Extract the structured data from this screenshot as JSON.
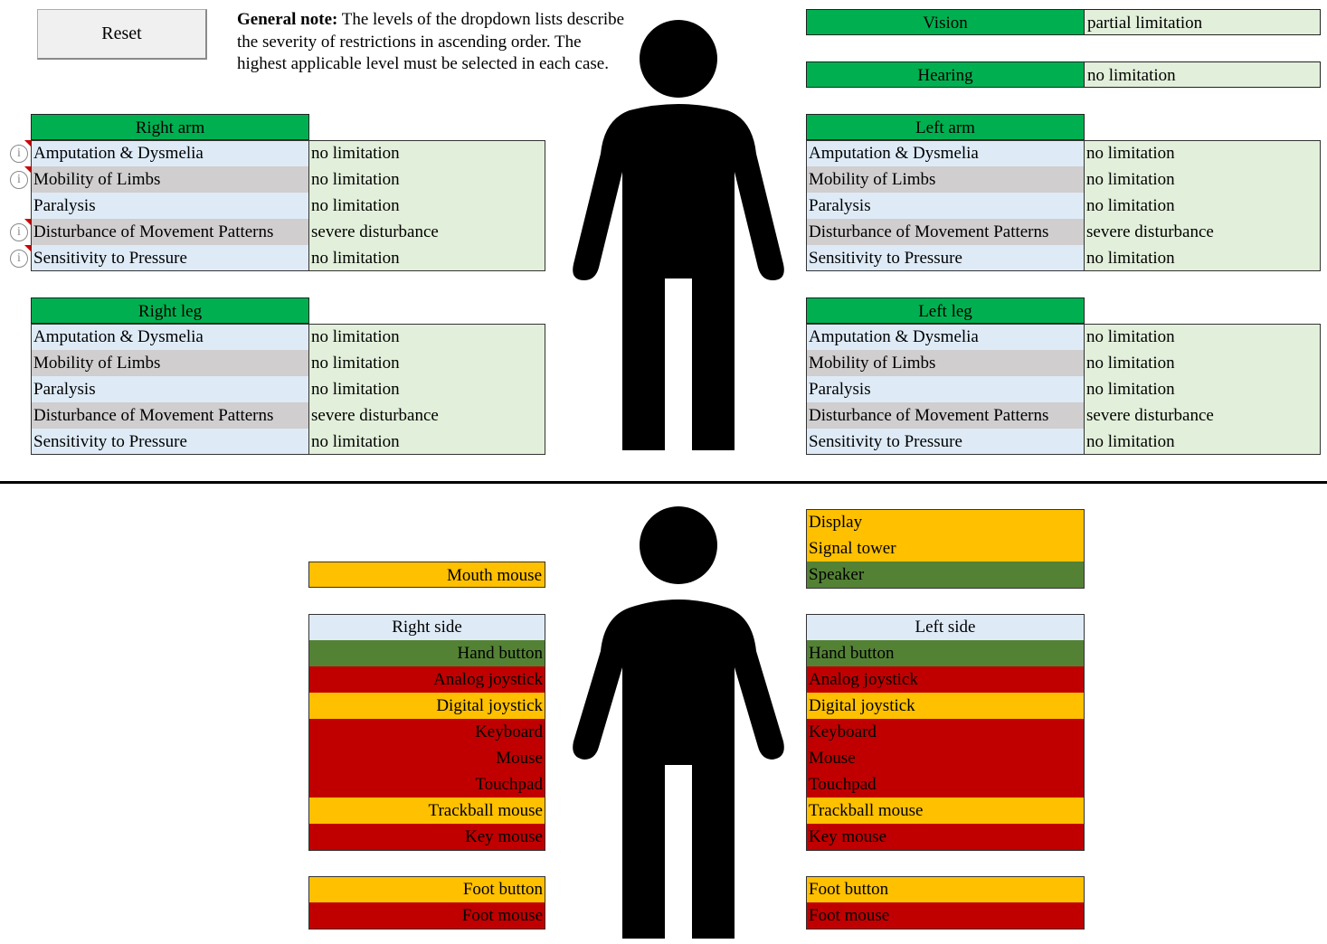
{
  "reset_label": "Reset",
  "note": {
    "bold": "General note:",
    "text": " The levels of the dropdown lists describe the severity of restrictions in ascending order. The highest applicable level must be selected in each case."
  },
  "senses": [
    {
      "label": "Vision",
      "value": "partial limitation"
    },
    {
      "label": "Hearing",
      "value": "no limitation"
    }
  ],
  "right_arm": {
    "title": "Right arm",
    "rows": [
      {
        "label": "Amputation & Dysmelia",
        "value": "no limitation"
      },
      {
        "label": "Mobility of Limbs",
        "value": "no limitation"
      },
      {
        "label": "Paralysis",
        "value": "no limitation"
      },
      {
        "label": "Disturbance of Movement Patterns",
        "value": "severe disturbance"
      },
      {
        "label": "Sensitivity to Pressure",
        "value": "no limitation"
      }
    ]
  },
  "left_arm": {
    "title": "Left arm",
    "rows": [
      {
        "label": "Amputation & Dysmelia",
        "value": "no limitation"
      },
      {
        "label": "Mobility of Limbs",
        "value": "no limitation"
      },
      {
        "label": "Paralysis",
        "value": "no limitation"
      },
      {
        "label": "Disturbance of Movement Patterns",
        "value": "severe disturbance"
      },
      {
        "label": "Sensitivity to Pressure",
        "value": "no limitation"
      }
    ]
  },
  "right_leg": {
    "title": "Right leg",
    "rows": [
      {
        "label": "Amputation & Dysmelia",
        "value": "no limitation"
      },
      {
        "label": "Mobility of Limbs",
        "value": "no limitation"
      },
      {
        "label": "Paralysis",
        "value": "no limitation"
      },
      {
        "label": "Disturbance of Movement Patterns",
        "value": "severe disturbance"
      },
      {
        "label": "Sensitivity to Pressure",
        "value": "no limitation"
      }
    ]
  },
  "left_leg": {
    "title": "Left leg",
    "rows": [
      {
        "label": "Amputation & Dysmelia",
        "value": "no limitation"
      },
      {
        "label": "Mobility of Limbs",
        "value": "no limitation"
      },
      {
        "label": "Paralysis",
        "value": "no limitation"
      },
      {
        "label": "Disturbance of Movement Patterns",
        "value": "severe disturbance"
      },
      {
        "label": "Sensitivity to Pressure",
        "value": "no limitation"
      }
    ]
  },
  "info_glyph": "i",
  "mouth": {
    "label": "Mouth mouse",
    "status": "orange"
  },
  "outputs": [
    {
      "label": "Display",
      "status": "orange"
    },
    {
      "label": "Signal tower",
      "status": "orange"
    },
    {
      "label": "Speaker",
      "status": "dgreen"
    }
  ],
  "right_side": {
    "title": "Right side",
    "items": [
      {
        "label": "Hand button",
        "status": "dgreen"
      },
      {
        "label": "Analog joystick",
        "status": "red"
      },
      {
        "label": "Digital joystick",
        "status": "orange"
      },
      {
        "label": "Keyboard",
        "status": "red"
      },
      {
        "label": "Mouse",
        "status": "red"
      },
      {
        "label": "Touchpad",
        "status": "red"
      },
      {
        "label": "Trackball mouse",
        "status": "orange"
      },
      {
        "label": "Key mouse",
        "status": "red"
      }
    ],
    "feet": [
      {
        "label": "Foot button",
        "status": "orange"
      },
      {
        "label": "Foot mouse",
        "status": "red"
      }
    ]
  },
  "left_side": {
    "title": "Left side",
    "items": [
      {
        "label": "Hand button",
        "status": "dgreen"
      },
      {
        "label": "Analog joystick",
        "status": "red"
      },
      {
        "label": "Digital joystick",
        "status": "orange"
      },
      {
        "label": "Keyboard",
        "status": "red"
      },
      {
        "label": "Mouse",
        "status": "red"
      },
      {
        "label": "Touchpad",
        "status": "red"
      },
      {
        "label": "Trackball mouse",
        "status": "orange"
      },
      {
        "label": "Key mouse",
        "status": "red"
      }
    ],
    "feet": [
      {
        "label": "Foot button",
        "status": "orange"
      },
      {
        "label": "Foot mouse",
        "status": "red"
      }
    ]
  },
  "colors": {
    "header_green": "#00b050",
    "orange": "#ffc000",
    "red": "#c00000",
    "dark_green": "#548235",
    "light_blue": "#deebf7",
    "grey": "#d0cece",
    "value_green": "#e2efda"
  }
}
